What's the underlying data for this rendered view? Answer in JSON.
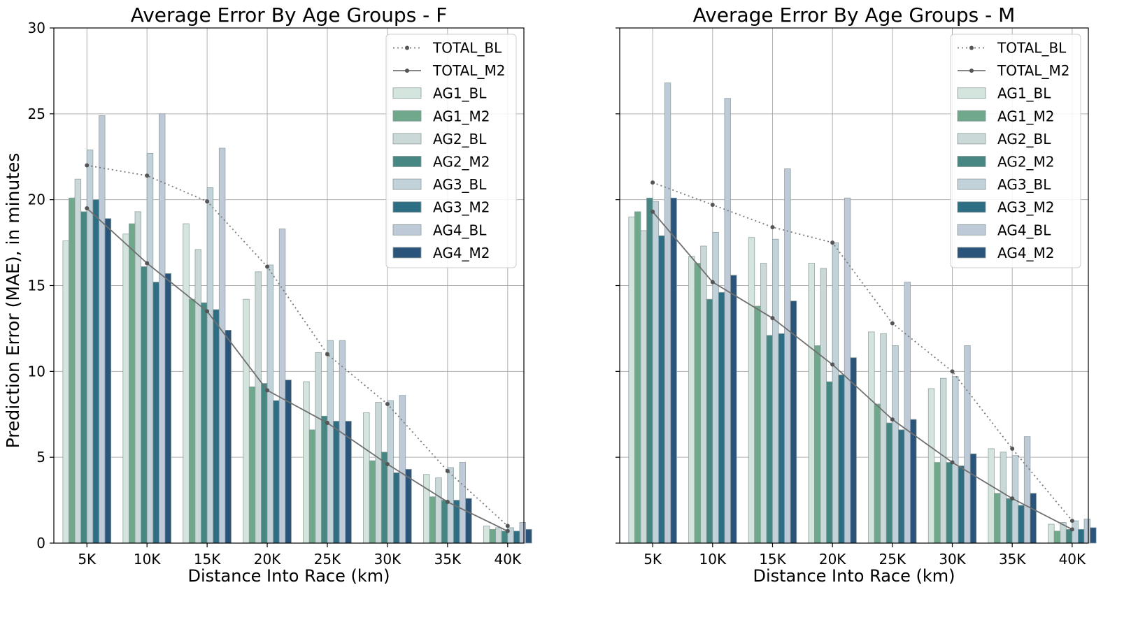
{
  "page": {
    "ylabel": "Prediction Error (MAE), in minutes"
  },
  "chart_data": [
    {
      "type": "bar",
      "title": "Average Error By Age Groups - F",
      "xlabel": "Distance Into Race (km)",
      "ylabel": "Prediction Error (MAE), in minutes",
      "ylim": [
        0,
        30
      ],
      "yticks": [
        0,
        5,
        10,
        15,
        20,
        25,
        30
      ],
      "grid": true,
      "legend_position": "top-right",
      "categories": [
        "5K",
        "10K",
        "15K",
        "20K",
        "25K",
        "30K",
        "35K",
        "40K"
      ],
      "series": [
        {
          "name": "AG1_BL",
          "values": [
            17.6,
            18.0,
            18.6,
            14.2,
            9.4,
            7.6,
            4.0,
            1.0
          ]
        },
        {
          "name": "AG1_M2",
          "values": [
            20.1,
            18.6,
            14.2,
            9.1,
            6.6,
            4.8,
            2.7,
            0.8
          ]
        },
        {
          "name": "AG2_BL",
          "values": [
            21.2,
            19.3,
            17.1,
            15.8,
            11.1,
            8.2,
            3.8,
            0.9
          ]
        },
        {
          "name": "AG2_M2",
          "values": [
            19.3,
            16.1,
            14.0,
            9.3,
            7.4,
            5.3,
            2.5,
            0.7
          ]
        },
        {
          "name": "AG3_BL",
          "values": [
            22.9,
            22.7,
            20.7,
            16.2,
            11.8,
            8.3,
            4.4,
            0.9
          ]
        },
        {
          "name": "AG3_M2",
          "values": [
            20.0,
            15.2,
            13.6,
            8.3,
            7.1,
            4.1,
            2.5,
            0.7
          ]
        },
        {
          "name": "AG4_BL",
          "values": [
            24.9,
            25.0,
            23.0,
            18.3,
            11.8,
            8.6,
            4.7,
            1.2
          ]
        },
        {
          "name": "AG4_M2",
          "values": [
            18.9,
            15.7,
            12.4,
            9.5,
            7.1,
            4.3,
            2.6,
            0.8
          ]
        }
      ],
      "lines": [
        {
          "name": "TOTAL_BL",
          "style": "dotted",
          "values": [
            22.0,
            21.4,
            19.9,
            16.1,
            11.0,
            8.1,
            4.2,
            1.0
          ]
        },
        {
          "name": "TOTAL_M2",
          "style": "solid",
          "values": [
            19.5,
            16.3,
            13.5,
            8.9,
            7.0,
            4.6,
            2.4,
            0.7
          ]
        }
      ]
    },
    {
      "type": "bar",
      "title": "Average Error By Age Groups - M",
      "xlabel": "Distance Into Race (km)",
      "ylabel": "",
      "ylim": [
        0,
        30
      ],
      "yticks": [
        0,
        5,
        10,
        15,
        20,
        25,
        30
      ],
      "grid": true,
      "legend_position": "top-right",
      "categories": [
        "5K",
        "10K",
        "15K",
        "20K",
        "25K",
        "30K",
        "35K",
        "40K"
      ],
      "series": [
        {
          "name": "AG1_BL",
          "values": [
            19.0,
            16.7,
            17.8,
            16.3,
            12.3,
            9.0,
            5.5,
            1.1
          ]
        },
        {
          "name": "AG1_M2",
          "values": [
            19.3,
            16.3,
            13.8,
            11.5,
            8.1,
            4.7,
            2.9,
            0.7
          ]
        },
        {
          "name": "AG2_BL",
          "values": [
            18.2,
            17.3,
            16.3,
            16.0,
            12.2,
            9.6,
            5.3,
            1.2
          ]
        },
        {
          "name": "AG2_M2",
          "values": [
            20.1,
            14.2,
            12.1,
            9.4,
            7.0,
            4.7,
            2.6,
            0.8
          ]
        },
        {
          "name": "AG3_BL",
          "values": [
            19.9,
            18.1,
            17.7,
            17.5,
            11.5,
            9.7,
            5.1,
            1.3
          ]
        },
        {
          "name": "AG3_M2",
          "values": [
            17.9,
            14.6,
            12.2,
            9.8,
            6.6,
            4.5,
            2.2,
            0.8
          ]
        },
        {
          "name": "AG4_BL",
          "values": [
            26.8,
            25.9,
            21.8,
            20.1,
            15.2,
            11.5,
            6.2,
            1.4
          ]
        },
        {
          "name": "AG4_M2",
          "values": [
            20.1,
            15.6,
            14.1,
            10.8,
            7.2,
            5.2,
            2.9,
            0.9
          ]
        }
      ],
      "lines": [
        {
          "name": "TOTAL_BL",
          "style": "dotted",
          "values": [
            21.0,
            19.7,
            18.4,
            17.5,
            12.8,
            10.0,
            5.5,
            1.3
          ]
        },
        {
          "name": "TOTAL_M2",
          "style": "solid",
          "values": [
            19.3,
            15.2,
            13.1,
            10.4,
            7.2,
            4.7,
            2.6,
            0.8
          ]
        }
      ]
    }
  ],
  "colors": {
    "AG1_BL": "#d3e5dd",
    "AG1_M2": "#6fa88a",
    "AG2_BL": "#cad9d8",
    "AG2_M2": "#468783",
    "AG3_BL": "#c2d2da",
    "AG3_M2": "#2e6e85",
    "AG4_BL": "#bfcad8",
    "AG4_M2": "#2a547a",
    "TOTAL_BL": "#7a7a7a",
    "TOTAL_M2": "#6f6f6f",
    "grid": "#b0b0b0",
    "axes": "#000000",
    "bar_edge": "#8a9a9a"
  }
}
